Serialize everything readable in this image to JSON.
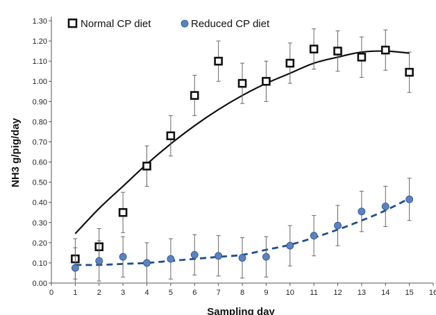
{
  "chart_data": {
    "type": "scatter",
    "xlabel": "Sampling day",
    "ylabel": "NH3  g/pig/day",
    "xlim": [
      0,
      16
    ],
    "ylim": [
      0,
      1.3
    ],
    "x_ticks": [
      0,
      1,
      2,
      3,
      4,
      5,
      6,
      7,
      8,
      9,
      10,
      11,
      12,
      13,
      14,
      15,
      16
    ],
    "y_ticks": [
      0.0,
      0.1,
      0.2,
      0.3,
      0.4,
      0.5,
      0.6,
      0.7,
      0.8,
      0.9,
      1.0,
      1.1,
      1.2,
      1.3
    ],
    "y_tick_labels": [
      "0.00",
      "0.10",
      "0.20",
      "0.30",
      "0.40",
      "0.50",
      "0.60",
      "0.70",
      "0.80",
      "0.90",
      "1.00",
      "1.10",
      "1.20",
      "1.30"
    ],
    "grid": false,
    "legend_position": "top-left",
    "series": [
      {
        "name": "Normal CP diet",
        "marker": "hollow-square",
        "color": "#111111",
        "x": [
          1,
          2,
          3,
          4,
          5,
          6,
          7,
          8,
          9,
          10,
          11,
          12,
          13,
          14,
          15
        ],
        "y": [
          0.12,
          0.18,
          0.35,
          0.58,
          0.73,
          0.93,
          1.1,
          0.99,
          1.0,
          1.09,
          1.16,
          1.15,
          1.12,
          1.155,
          1.045
        ],
        "error": [
          0.1,
          0.09,
          0.1,
          0.1,
          0.1,
          0.1,
          0.1,
          0.1,
          0.1,
          0.1,
          0.1,
          0.1,
          0.1,
          0.1,
          0.1
        ],
        "trend": {
          "style": "solid",
          "color": "#111111",
          "x": [
            1,
            2,
            3,
            4,
            5,
            6,
            7,
            8,
            9,
            10,
            11,
            12,
            13,
            14,
            15
          ],
          "y": [
            0.245,
            0.37,
            0.48,
            0.59,
            0.69,
            0.78,
            0.86,
            0.93,
            0.99,
            1.04,
            1.09,
            1.12,
            1.145,
            1.15,
            1.14
          ]
        }
      },
      {
        "name": "Reduced CP diet",
        "marker": "filled-circle",
        "color": "#5b82c2",
        "x": [
          1,
          2,
          3,
          4,
          5,
          6,
          7,
          8,
          9,
          10,
          11,
          12,
          13,
          14,
          15
        ],
        "y": [
          0.075,
          0.11,
          0.13,
          0.1,
          0.12,
          0.14,
          0.135,
          0.125,
          0.13,
          0.185,
          0.235,
          0.285,
          0.355,
          0.38,
          0.415
        ],
        "error": [
          0.1,
          0.1,
          0.1,
          0.1,
          0.1,
          0.1,
          0.1,
          0.1,
          0.1,
          0.1,
          0.1,
          0.1,
          0.1,
          0.1,
          0.105
        ],
        "trend": {
          "style": "dashed",
          "color": "#1f4e8c",
          "x": [
            1,
            2,
            3,
            4,
            5,
            6,
            7,
            8,
            9,
            10,
            11,
            12,
            13,
            14,
            15
          ],
          "y": [
            0.09,
            0.09,
            0.095,
            0.1,
            0.11,
            0.12,
            0.13,
            0.14,
            0.165,
            0.19,
            0.225,
            0.265,
            0.31,
            0.36,
            0.42
          ]
        }
      }
    ]
  }
}
